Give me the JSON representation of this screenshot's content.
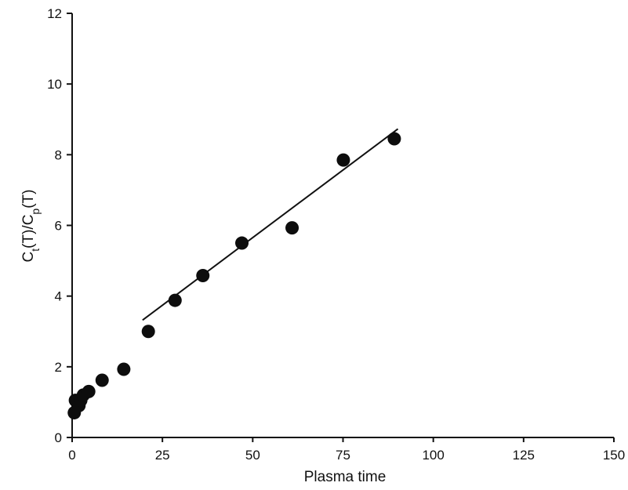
{
  "chart_data": {
    "type": "scatter",
    "xlabel": "Plasma time",
    "ylabel": {
      "base": "C",
      "sub1": "t",
      "mid": "(T)/C",
      "sub2": "p",
      "end": "(T)"
    },
    "xlim": [
      0,
      150
    ],
    "ylim": [
      0,
      12
    ],
    "x_ticks": [
      0,
      25,
      50,
      75,
      100,
      125,
      150
    ],
    "x_tick_labels": [
      "0",
      "25",
      "50",
      "75",
      "100",
      "125",
      "150"
    ],
    "y_ticks": [
      0,
      2,
      4,
      6,
      8,
      10,
      12
    ],
    "y_tick_labels": [
      "0",
      "2",
      "4",
      "6",
      "8",
      "10",
      "12"
    ],
    "grid": false,
    "points": [
      {
        "x": 0.6,
        "y": 0.7
      },
      {
        "x": 0.9,
        "y": 1.05
      },
      {
        "x": 1.9,
        "y": 0.9
      },
      {
        "x": 2.4,
        "y": 1.05
      },
      {
        "x": 3.1,
        "y": 1.2
      },
      {
        "x": 4.6,
        "y": 1.3
      },
      {
        "x": 8.3,
        "y": 1.62
      },
      {
        "x": 14.3,
        "y": 1.93
      },
      {
        "x": 21.1,
        "y": 3.0
      },
      {
        "x": 28.5,
        "y": 3.88
      },
      {
        "x": 36.2,
        "y": 4.58
      },
      {
        "x": 47.0,
        "y": 5.5
      },
      {
        "x": 60.9,
        "y": 5.93
      },
      {
        "x": 75.1,
        "y": 7.85
      },
      {
        "x": 89.2,
        "y": 8.45
      }
    ],
    "fit_line": {
      "x1": 19.5,
      "y1": 3.32,
      "x2": 90.2,
      "y2": 8.73
    }
  }
}
